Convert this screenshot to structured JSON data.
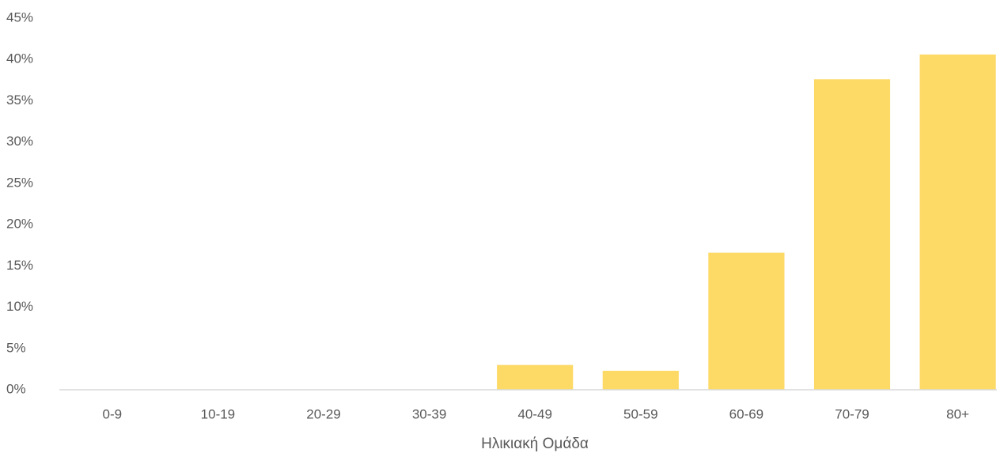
{
  "chart_data": {
    "type": "bar",
    "x_label": "Ηλικιακή Ομάδα",
    "categories": [
      "0-9",
      "10-19",
      "20-29",
      "30-39",
      "40-49",
      "50-59",
      "60-69",
      "70-79",
      "80+"
    ],
    "values": [
      0,
      0,
      0,
      0,
      3.0,
      2.3,
      16.6,
      37.6,
      40.6
    ],
    "color": "#fdd966",
    "ylim": [
      0,
      45
    ],
    "yticks": [
      {
        "value": 0,
        "label": "0%"
      },
      {
        "value": 5,
        "label": "5%"
      },
      {
        "value": 10,
        "label": "10%"
      },
      {
        "value": 15,
        "label": "15%"
      },
      {
        "value": 20,
        "label": "20%"
      },
      {
        "value": 25,
        "label": "25%"
      },
      {
        "value": 30,
        "label": "30%"
      },
      {
        "value": 35,
        "label": "35%"
      },
      {
        "value": 40,
        "label": "40%"
      },
      {
        "value": 45,
        "label": "45%"
      }
    ],
    "grid": false
  }
}
